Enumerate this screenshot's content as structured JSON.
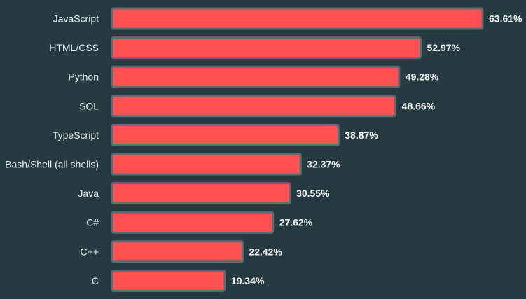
{
  "colors": {
    "background": "#263a42",
    "bar_fill": "#ff5151",
    "bar_stroke": "#5e6c72",
    "text": "#e8eef0"
  },
  "chart_data": {
    "type": "bar",
    "orientation": "horizontal",
    "categories": [
      "JavaScript",
      "HTML/CSS",
      "Python",
      "SQL",
      "TypeScript",
      "Bash/Shell (all shells)",
      "Java",
      "C#",
      "C++",
      "C"
    ],
    "values": [
      63.61,
      52.97,
      49.28,
      48.66,
      38.87,
      32.37,
      30.55,
      27.62,
      22.42,
      19.34
    ],
    "value_labels": [
      "63.61%",
      "52.97%",
      "49.28%",
      "48.66%",
      "38.87%",
      "32.37%",
      "30.55%",
      "27.62%",
      "22.42%",
      "19.34%"
    ],
    "xlim": [
      0,
      63.61
    ],
    "title": "",
    "xlabel": "",
    "ylabel": "",
    "grid": false,
    "legend": "none"
  }
}
